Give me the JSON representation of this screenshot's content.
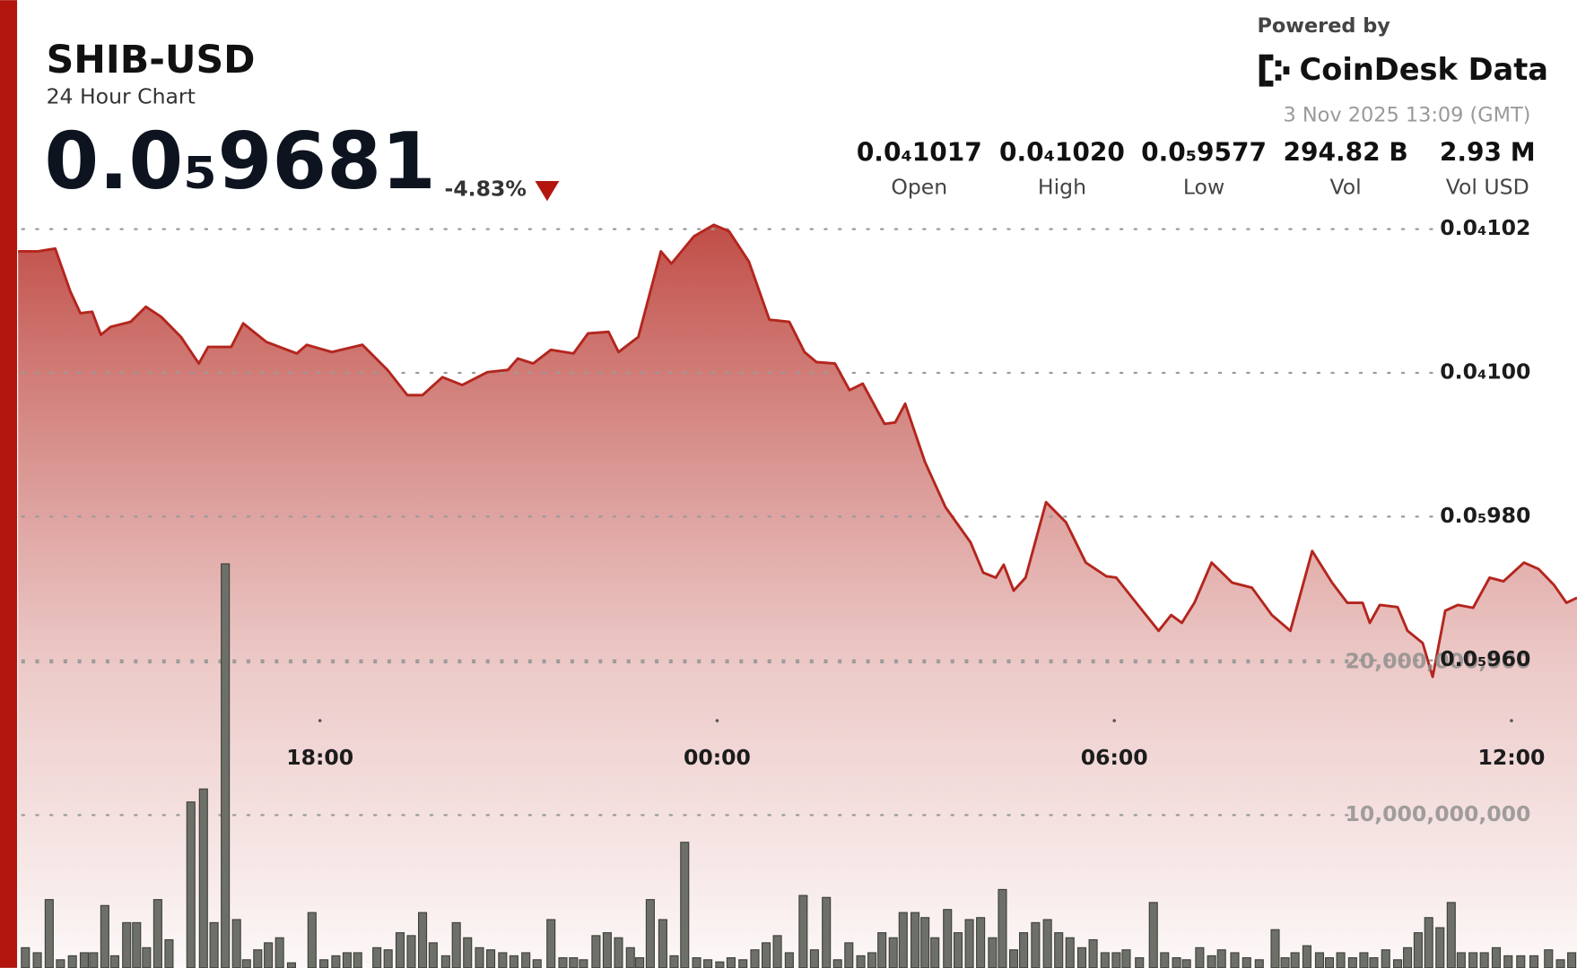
{
  "header": {
    "title": "SHIB-USD",
    "subtitle": "24 Hour Chart",
    "price": "0.0₅9681",
    "change": "-4.83%",
    "powered_by": "Powered by",
    "brand": "CoinDesk Data",
    "timestamp": "3 Nov 2025 13:09 (GMT)"
  },
  "stats": [
    {
      "value": "0.0₄1017",
      "label": "Open"
    },
    {
      "value": "0.0₄1020",
      "label": "High"
    },
    {
      "value": "0.0₅9577",
      "label": "Low"
    },
    {
      "value": "294.82 B",
      "label": "Vol"
    },
    {
      "value": "2.93 M",
      "label": "Vol USD"
    }
  ],
  "chart_data": {
    "type": "line",
    "xlim": [
      13.44,
      36.99
    ],
    "xticks": [
      {
        "value": 18,
        "label": "18:00"
      },
      {
        "value": 24,
        "label": "00:00"
      },
      {
        "value": 30,
        "label": "06:00"
      },
      {
        "value": 36,
        "label": "12:00"
      }
    ],
    "ylim": [
      9.172e-06,
      1.0218e-05
    ],
    "yticks": [
      {
        "value": 1.02e-05,
        "label": "0.0₄102"
      },
      {
        "value": 1e-05,
        "label": "0.0₄100"
      },
      {
        "value": 9.8e-06,
        "label": "0.0₅980"
      },
      {
        "value": 9.6e-06,
        "label": "0.0₅960"
      }
    ],
    "y2lim": [
      0,
      49210000000.0
    ],
    "y2ticks": [
      {
        "value": 10000000000,
        "label": "10,000,000,000"
      },
      {
        "value": 20000000000,
        "label": "20,000,000,000"
      }
    ],
    "grid": true,
    "series": [
      {
        "type": "line",
        "color": "#b3261e",
        "x": [
          13.44,
          13.74,
          14.0,
          14.23,
          14.38,
          14.56,
          14.69,
          14.84,
          15.14,
          15.37,
          15.6,
          15.9,
          16.17,
          16.31,
          16.66,
          16.84,
          17.19,
          17.65,
          17.8,
          18.18,
          18.64,
          19.02,
          19.32,
          19.55,
          19.85,
          20.15,
          20.53,
          20.84,
          20.99,
          21.22,
          21.49,
          21.83,
          22.05,
          22.36,
          22.51,
          22.81,
          23.15,
          23.31,
          23.65,
          23.95,
          24.18,
          24.48,
          24.79,
          25.09,
          25.32,
          25.5,
          25.78,
          26.0,
          26.2,
          26.53,
          26.69,
          26.84,
          27.14,
          27.45,
          27.83,
          28.02,
          28.21,
          28.33,
          28.48,
          28.66,
          28.97,
          29.27,
          29.57,
          29.88,
          30.03,
          30.33,
          30.67,
          30.86,
          31.02,
          31.21,
          31.47,
          31.78,
          32.08,
          32.38,
          32.66,
          32.99,
          33.29,
          33.52,
          33.75,
          33.86,
          34.01,
          34.28,
          34.43,
          34.66,
          34.81,
          35.0,
          35.19,
          35.42,
          35.67,
          35.88,
          36.19,
          36.41,
          36.64,
          36.83,
          36.99
        ],
        "values": [
          1.0169e-05,
          1.0169e-05,
          1.0173e-05,
          1.0113e-05,
          1.0083e-05,
          1.0085e-05,
          1.0053e-05,
          1.0064e-05,
          1.0071e-05,
          1.0092e-05,
          1.0078e-05,
          1.005e-05,
          1.0013e-05,
          1.0036e-05,
          1.0036e-05,
          1.0069e-05,
          1.0043e-05,
          1.0027e-05,
          1.0039e-05,
          1.0029e-05,
          1.0039e-05,
          1.0004e-05,
          9.969e-06,
          9.969e-06,
          9.994e-06,
          9.983e-06,
          1.0001e-05,
          1.0004e-05,
          1.002e-05,
          1.0013e-05,
          1.0032e-05,
          1.0027e-05,
          1.0055e-05,
          1.0057e-05,
          1.0029e-05,
          1.005e-05,
          1.0169e-05,
          1.0152e-05,
          1.019e-05,
          1.0206e-05,
          1.0197e-05,
          1.0155e-05,
          1.0074e-05,
          1.0071e-05,
          1.0029e-05,
          1.0015e-05,
          1.0013e-05,
          9.976e-06,
          9.985e-06,
          9.929e-06,
          9.931e-06,
          9.957e-06,
          9.876e-06,
          9.813e-06,
          9.764e-06,
          9.722e-06,
          9.715e-06,
          9.733e-06,
          9.697e-06,
          9.715e-06,
          9.82e-06,
          9.792e-06,
          9.736e-06,
          9.717e-06,
          9.715e-06,
          9.68e-06,
          9.641e-06,
          9.663e-06,
          9.652e-06,
          9.68e-06,
          9.736e-06,
          9.708e-06,
          9.701e-06,
          9.663e-06,
          9.641e-06,
          9.752e-06,
          9.708e-06,
          9.68e-06,
          9.68e-06,
          9.652e-06,
          9.677e-06,
          9.674e-06,
          9.641e-06,
          9.624e-06,
          9.577e-06,
          9.669e-06,
          9.677e-06,
          9.673e-06,
          9.715e-06,
          9.71e-06,
          9.736e-06,
          9.727e-06,
          9.705e-06,
          9.68e-06,
          9.687e-06
        ]
      },
      {
        "type": "bar",
        "axis": "y2",
        "color": "#6d7068",
        "x": [
          13.55,
          13.73,
          13.91,
          14.08,
          14.26,
          14.44,
          14.58,
          14.75,
          14.9,
          15.08,
          15.23,
          15.38,
          15.55,
          15.72,
          16.05,
          16.24,
          16.4,
          16.57,
          16.74,
          16.89,
          17.06,
          17.22,
          17.39,
          17.57,
          17.88,
          18.06,
          18.24,
          18.41,
          18.57,
          18.86,
          19.03,
          19.21,
          19.38,
          19.55,
          19.71,
          19.9,
          20.06,
          20.23,
          20.41,
          20.58,
          20.76,
          20.93,
          21.11,
          21.28,
          21.49,
          21.67,
          21.83,
          21.98,
          22.17,
          22.34,
          22.51,
          22.69,
          22.83,
          22.99,
          23.18,
          23.35,
          23.51,
          23.69,
          23.86,
          24.04,
          24.21,
          24.39,
          24.57,
          24.74,
          24.91,
          25.09,
          25.3,
          25.47,
          25.65,
          25.82,
          25.99,
          26.17,
          26.34,
          26.49,
          26.66,
          26.81,
          26.99,
          27.14,
          27.29,
          27.48,
          27.64,
          27.81,
          27.98,
          28.16,
          28.31,
          28.48,
          28.63,
          28.81,
          28.99,
          29.16,
          29.33,
          29.51,
          29.68,
          29.86,
          30.03,
          30.18,
          30.38,
          30.59,
          30.76,
          30.94,
          31.09,
          31.29,
          31.47,
          31.62,
          31.82,
          32.0,
          32.19,
          32.43,
          32.58,
          32.73,
          32.91,
          33.1,
          33.25,
          33.42,
          33.6,
          33.77,
          33.92,
          34.1,
          34.28,
          34.43,
          34.59,
          34.75,
          34.92,
          35.09,
          35.24,
          35.42,
          35.59,
          35.77,
          35.95,
          36.14,
          36.34,
          36.56,
          36.74,
          36.91
        ],
        "values": [
          1320000000.0,
          990000000.0,
          4470000000.0,
          530000000.0,
          790000000.0,
          990000000.0,
          990000000.0,
          4080000000.0,
          790000000.0,
          2960000000.0,
          2960000000.0,
          1320000000.0,
          4470000000.0,
          1840000000.0,
          10860000000.0,
          11710000000.0,
          2960000000.0,
          26450000000.0,
          3160000000.0,
          530000000.0,
          1180000000.0,
          1640000000.0,
          1970000000.0,
          330000000.0,
          3620000000.0,
          530000000.0,
          790000000.0,
          990000000.0,
          990000000.0,
          1320000000.0,
          1180000000.0,
          2300000000.0,
          2110000000.0,
          3620000000.0,
          1640000000.0,
          790000000.0,
          2960000000.0,
          1970000000.0,
          1320000000.0,
          1180000000.0,
          990000000.0,
          790000000.0,
          990000000.0,
          530000000.0,
          3160000000.0,
          660000000.0,
          660000000.0,
          530000000.0,
          2110000000.0,
          2300000000.0,
          1970000000.0,
          1320000000.0,
          660000000.0,
          4470000000.0,
          3160000000.0,
          790000000.0,
          8220000000.0,
          660000000.0,
          530000000.0,
          390000000.0,
          660000000.0,
          530000000.0,
          1180000000.0,
          1640000000.0,
          2110000000.0,
          990000000.0,
          4740000000.0,
          1180000000.0,
          4610000000.0,
          530000000.0,
          1640000000.0,
          790000000.0,
          990000000.0,
          2300000000.0,
          1970000000.0,
          3620000000.0,
          3620000000.0,
          3290000000.0,
          1970000000.0,
          3820000000.0,
          2300000000.0,
          3160000000.0,
          3290000000.0,
          1970000000.0,
          5130000000.0,
          1180000000.0,
          2300000000.0,
          2960000000.0,
          3160000000.0,
          2300000000.0,
          1970000000.0,
          1320000000.0,
          1840000000.0,
          990000000.0,
          990000000.0,
          1180000000.0,
          660000000.0,
          4280000000.0,
          990000000.0,
          660000000.0,
          530000000.0,
          1320000000.0,
          790000000.0,
          1180000000.0,
          990000000.0,
          660000000.0,
          530000000.0,
          2500000000.0,
          660000000.0,
          990000000.0,
          1450000000.0,
          990000000.0,
          660000000.0,
          990000000.0,
          660000000.0,
          990000000.0,
          660000000.0,
          1180000000.0,
          530000000.0,
          1320000000.0,
          2300000000.0,
          3290000000.0,
          2630000000.0,
          4280000000.0,
          990000000.0,
          990000000.0,
          990000000.0,
          1320000000.0,
          790000000.0,
          790000000.0,
          790000000.0,
          1180000000.0,
          530000000.0,
          990000000.0
        ]
      }
    ]
  }
}
